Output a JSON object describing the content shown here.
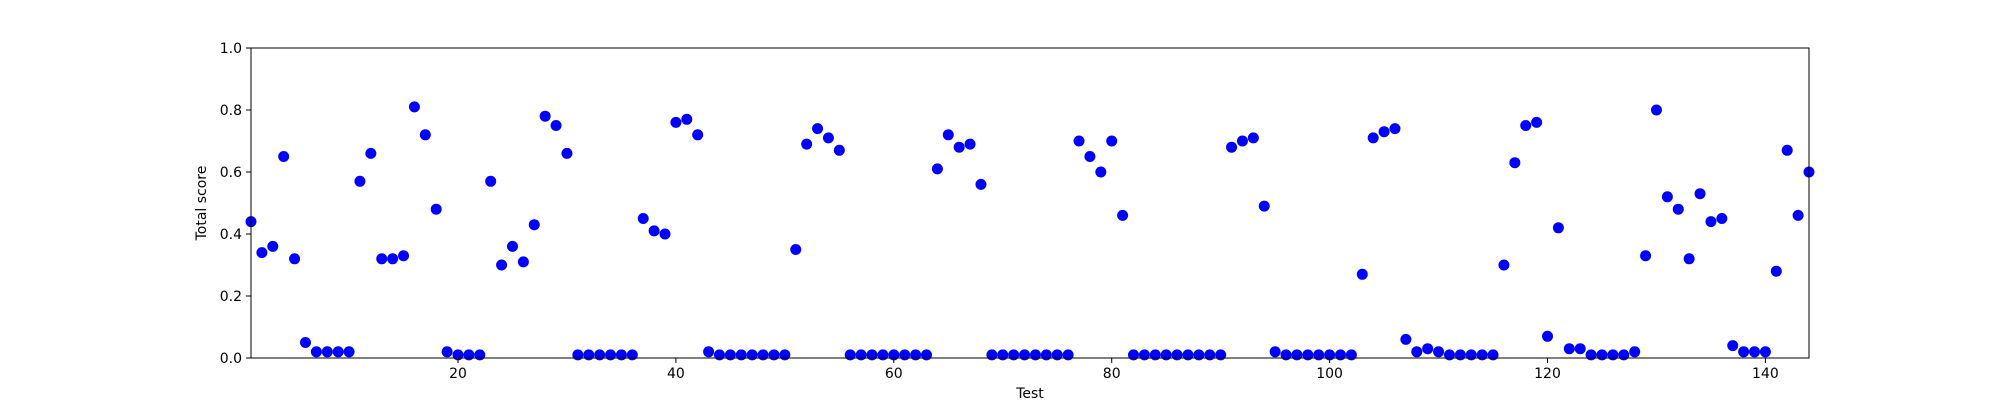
{
  "chart_data": {
    "type": "scatter",
    "xlabel": "Test",
    "ylabel": "Total score",
    "xlim": [
      1,
      144
    ],
    "ylim": [
      0.0,
      1.0
    ],
    "xticks": [
      20,
      40,
      60,
      80,
      100,
      120,
      140
    ],
    "yticks": [
      0.0,
      0.2,
      0.4,
      0.6,
      0.8,
      1.0
    ],
    "xtick_labels": [
      "20",
      "40",
      "60",
      "80",
      "100",
      "120",
      "140"
    ],
    "ytick_labels": [
      "0.0",
      "0.2",
      "0.4",
      "0.6",
      "0.8",
      "1.0"
    ],
    "grid": false,
    "marker_color": "#0000ff",
    "series": [
      {
        "x": [
          1,
          2,
          3,
          4,
          5,
          6,
          7,
          8,
          9,
          10,
          11,
          12,
          13,
          14,
          15,
          16,
          17,
          18,
          19,
          20,
          21,
          22,
          23,
          24,
          25,
          26,
          27,
          28,
          29,
          30,
          31,
          32,
          33,
          34,
          35,
          36,
          37,
          38,
          39,
          40,
          41,
          42,
          43,
          44,
          45,
          46,
          47,
          48,
          49,
          50,
          51,
          52,
          53,
          54,
          55,
          56,
          57,
          58,
          59,
          60,
          61,
          62,
          63,
          64,
          65,
          66,
          67,
          68,
          69,
          70,
          71,
          72,
          73,
          74,
          75,
          76,
          77,
          78,
          79,
          80,
          81,
          82,
          83,
          84,
          85,
          86,
          87,
          88,
          89,
          90,
          91,
          92,
          93,
          94,
          95,
          96,
          97,
          98,
          99,
          100,
          101,
          102,
          103,
          104,
          105,
          106,
          107,
          108,
          109,
          110,
          111,
          112,
          113,
          114,
          115,
          116,
          117,
          118,
          119,
          120,
          121,
          122,
          123,
          124,
          125,
          126,
          127,
          128,
          129,
          130,
          131,
          132,
          133,
          134,
          135,
          136,
          137,
          138,
          139,
          140,
          141,
          142,
          143,
          144
        ],
        "y": [
          0.44,
          0.34,
          0.36,
          0.65,
          0.32,
          0.05,
          0.02,
          0.02,
          0.02,
          0.02,
          0.57,
          0.66,
          0.32,
          0.32,
          0.33,
          0.81,
          0.72,
          0.48,
          0.02,
          0.01,
          0.01,
          0.01,
          0.57,
          0.3,
          0.36,
          0.31,
          0.43,
          0.78,
          0.75,
          0.66,
          0.01,
          0.01,
          0.01,
          0.01,
          0.01,
          0.01,
          0.45,
          0.41,
          0.4,
          0.76,
          0.77,
          0.72,
          0.02,
          0.01,
          0.01,
          0.01,
          0.01,
          0.01,
          0.01,
          0.01,
          0.35,
          0.69,
          0.74,
          0.71,
          0.67,
          0.01,
          0.01,
          0.01,
          0.01,
          0.01,
          0.01,
          0.01,
          0.01,
          0.61,
          0.72,
          0.68,
          0.69,
          0.56,
          0.01,
          0.01,
          0.01,
          0.01,
          0.01,
          0.01,
          0.01,
          0.01,
          0.7,
          0.65,
          0.6,
          0.7,
          0.46,
          0.01,
          0.01,
          0.01,
          0.01,
          0.01,
          0.01,
          0.01,
          0.01,
          0.01,
          0.68,
          0.7,
          0.71,
          0.49,
          0.02,
          0.01,
          0.01,
          0.01,
          0.01,
          0.01,
          0.01,
          0.01,
          0.27,
          0.71,
          0.73,
          0.74,
          0.06,
          0.02,
          0.03,
          0.02,
          0.01,
          0.01,
          0.01,
          0.01,
          0.01,
          0.3,
          0.63,
          0.75,
          0.76,
          0.07,
          0.42,
          0.03,
          0.03,
          0.01,
          0.01,
          0.01,
          0.01,
          0.02,
          0.33,
          0.8,
          0.52,
          0.48,
          0.32,
          0.53,
          0.44,
          0.45,
          0.04,
          0.02,
          0.02,
          0.02,
          0.28,
          0.67,
          0.46,
          0.6
        ]
      }
    ]
  }
}
